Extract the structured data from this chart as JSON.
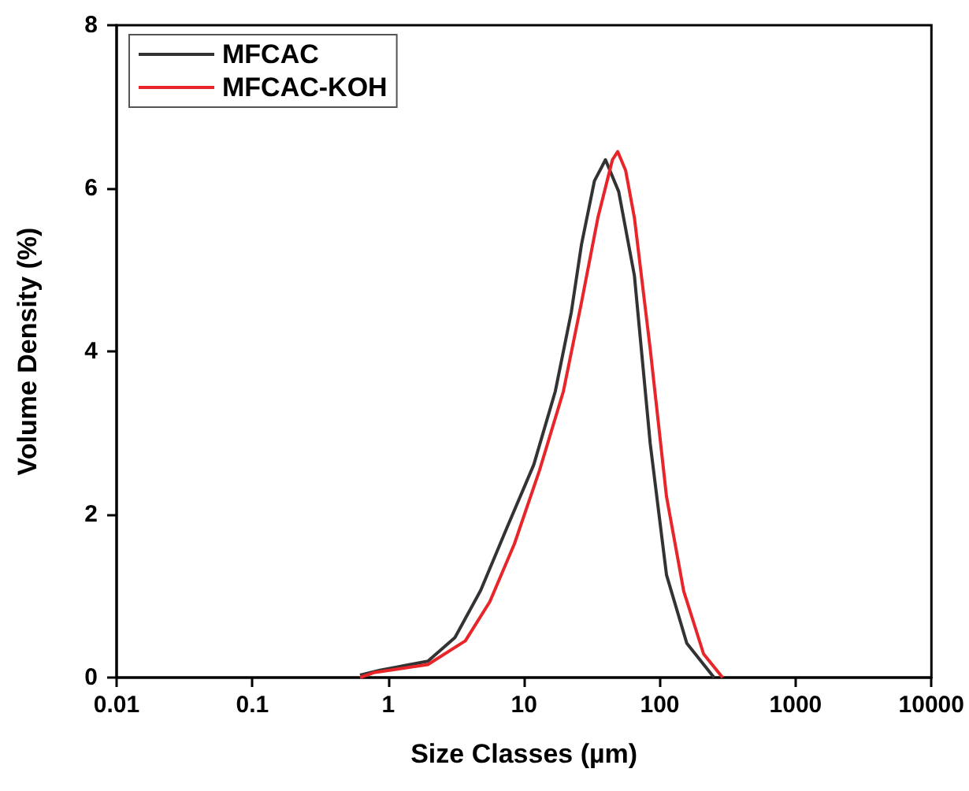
{
  "chart_data": {
    "type": "line",
    "xlabel": "Size Classes (µm)",
    "ylabel": "Volume Density (%)",
    "log": "x",
    "xlim": [
      0.01,
      10000
    ],
    "xticks": [
      0.01,
      0.1,
      1,
      10,
      100,
      1000,
      10000
    ],
    "ylim": [
      0,
      8
    ],
    "yticks": [
      0,
      2,
      4,
      6,
      8
    ],
    "grid": false,
    "legend": "top left",
    "marker": "none",
    "line_style": "solid",
    "series": [
      {
        "name": "MFCAC",
        "color": "#333333",
        "x": [
          0.62,
          0.87,
          1.96,
          3.1,
          4.8,
          7.5,
          11.8,
          17,
          22.3,
          26.5,
          33,
          39.8,
          49.8,
          65,
          85,
          112,
          158,
          251
        ],
        "values": [
          0.03,
          0.09,
          0.2,
          0.49,
          1.07,
          1.84,
          2.61,
          3.51,
          4.48,
          5.31,
          6.09,
          6.35,
          5.96,
          4.93,
          2.87,
          1.26,
          0.42,
          0
        ]
      },
      {
        "name": "MFCAC-KOH",
        "color": "#e8262a",
        "x": [
          0.62,
          0.78,
          1.96,
          3.7,
          5.6,
          8.5,
          13,
          19.5,
          26.5,
          35,
          44.8,
          49,
          56,
          65,
          85,
          112,
          150,
          210,
          290
        ],
        "values": [
          0,
          0.06,
          0.16,
          0.45,
          0.93,
          1.64,
          2.54,
          3.51,
          4.6,
          5.64,
          6.35,
          6.45,
          6.22,
          5.64,
          4.03,
          2.22,
          1.06,
          0.29,
          0
        ]
      }
    ]
  }
}
